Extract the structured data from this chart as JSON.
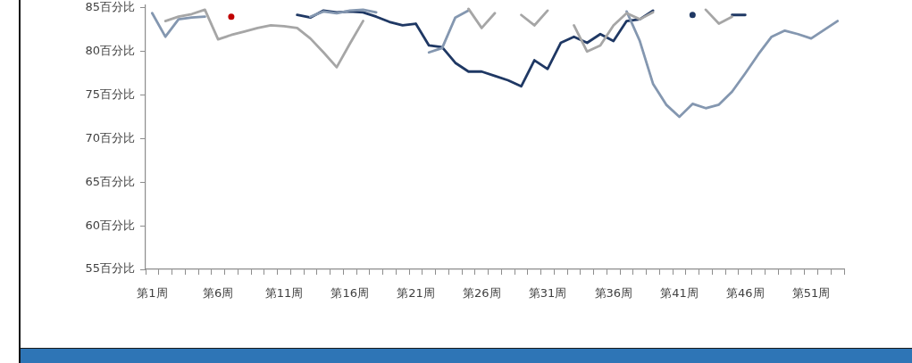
{
  "chart_data": {
    "type": "line",
    "categories": [
      "第1周",
      null,
      null,
      null,
      null,
      "第6周",
      null,
      null,
      null,
      null,
      "第11周",
      null,
      null,
      null,
      null,
      "第16周",
      null,
      null,
      null,
      null,
      "第21周",
      null,
      null,
      null,
      null,
      "第26周",
      null,
      null,
      null,
      null,
      "第31周",
      null,
      null,
      null,
      null,
      "第36周",
      null,
      null,
      null,
      null,
      "第41周",
      null,
      null,
      null,
      null,
      "第46周",
      null,
      null,
      null,
      null,
      "第51周",
      null,
      null
    ],
    "ylim": [
      55,
      85.3
    ],
    "yticks": [
      {
        "value": 55,
        "label": "55百分比"
      },
      {
        "value": 60,
        "label": "60百分比"
      },
      {
        "value": 65,
        "label": "65百分比"
      },
      {
        "value": 70,
        "label": "70百分比"
      },
      {
        "value": 75,
        "label": "75百分比"
      },
      {
        "value": 80,
        "label": "80百分比"
      },
      {
        "value": 85,
        "label": "85百分比"
      }
    ],
    "series": [
      {
        "color": "#a6a6a6",
        "values": [
          null,
          83.5,
          84.0,
          84.3,
          84.8,
          81.4,
          81.9,
          82.3,
          82.7,
          83.0,
          82.9,
          82.7,
          81.5,
          79.9,
          78.2,
          80.9,
          83.5,
          null,
          null,
          null,
          null,
          null,
          null,
          null,
          84.9,
          82.7,
          84.4,
          null,
          84.2,
          83.0,
          84.7,
          null,
          83.0,
          80.0,
          80.7,
          83.0,
          84.4,
          83.7,
          84.5,
          null,
          null,
          null,
          84.8,
          83.2,
          84.0,
          null,
          null,
          null,
          null,
          null,
          null,
          null,
          null
        ]
      },
      {
        "color": "#8497b0",
        "values": [
          84.4,
          81.7,
          83.7,
          83.9,
          84.0,
          null,
          null,
          null,
          null,
          null,
          null,
          null,
          84.0,
          84.6,
          84.4,
          84.7,
          84.8,
          84.5,
          null,
          null,
          null,
          79.9,
          80.4,
          83.9,
          84.7,
          null,
          null,
          null,
          null,
          null,
          null,
          null,
          null,
          null,
          null,
          null,
          84.6,
          81.2,
          76.3,
          73.9,
          72.5,
          74.0,
          73.5,
          73.9,
          75.4,
          77.5,
          79.7,
          81.7,
          82.4,
          82.0,
          81.5,
          82.5,
          83.5
        ]
      },
      {
        "color": "#1f3864",
        "values": [
          null,
          null,
          null,
          null,
          null,
          null,
          null,
          null,
          null,
          null,
          null,
          84.2,
          83.9,
          84.7,
          84.5,
          84.6,
          84.5,
          84.0,
          83.4,
          83.0,
          83.2,
          80.7,
          80.5,
          78.7,
          77.7,
          77.7,
          77.2,
          76.7,
          76.0,
          79.0,
          78.0,
          81.0,
          81.7,
          81.0,
          82.0,
          81.2,
          83.5,
          83.7,
          84.7,
          null,
          null,
          84.2,
          null,
          null,
          84.2,
          84.2,
          null,
          null,
          null,
          null,
          null,
          null,
          null
        ]
      },
      {
        "color": "#c00000",
        "marker": "circle",
        "values": [
          null,
          null,
          null,
          null,
          null,
          null,
          84.0,
          null,
          null,
          null,
          null,
          null,
          null,
          null,
          null,
          null,
          null,
          null,
          null,
          null,
          null,
          null,
          null,
          null,
          null,
          null,
          null,
          null,
          null,
          null,
          null,
          null,
          null,
          null,
          null,
          null,
          null,
          null,
          null,
          null,
          null,
          null,
          null,
          null,
          null,
          null,
          null,
          null,
          null,
          null,
          null,
          null,
          null
        ]
      }
    ]
  }
}
